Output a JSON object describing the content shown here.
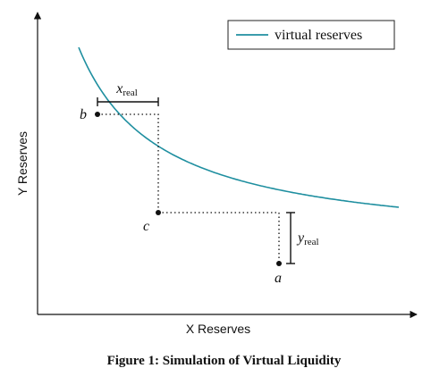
{
  "caption": "Figure 1: Simulation of Virtual Liquidity",
  "chart_data": {
    "type": "line",
    "xlabel": "X Reserves",
    "ylabel": "Y Reserves",
    "series": [
      {
        "name": "virtual reserves",
        "color": "#1f8fa0",
        "curve": "x*y=k"
      }
    ],
    "points": [
      {
        "label": "b"
      },
      {
        "label": "c"
      },
      {
        "label": "a"
      }
    ],
    "annotations": [
      {
        "base": "x",
        "sub": "real"
      },
      {
        "base": "y",
        "sub": "real"
      }
    ],
    "legend": "top-right",
    "grid": false
  }
}
